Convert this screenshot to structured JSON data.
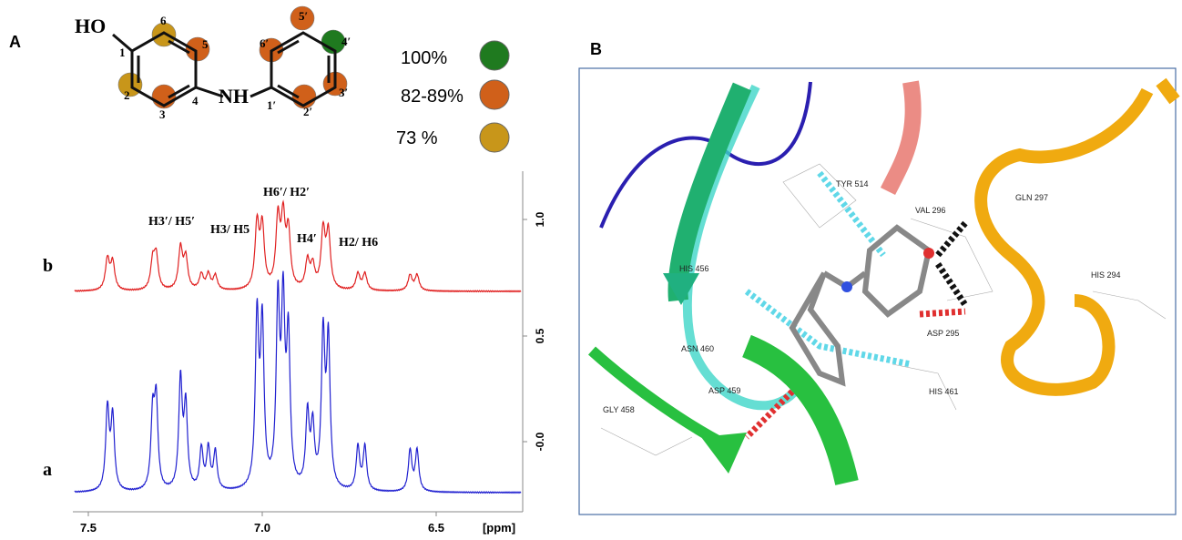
{
  "panel_a": {
    "label": "A",
    "molecule": {
      "hydroxyl": "HO",
      "amine": "NH",
      "positions": [
        "1",
        "2",
        "3",
        "4",
        "5",
        "6",
        "1′",
        "2′",
        "3′",
        "4′",
        "5′",
        "6′"
      ]
    },
    "legend": [
      "100%",
      "82-89%",
      "73  %"
    ],
    "spectra": {
      "traces": [
        "b",
        "a"
      ],
      "peaks": [
        "H3′/ H5′",
        "H3/ H5",
        "H6′/ H2′",
        "H4′",
        "H2/ H6"
      ],
      "xticks": [
        "7.5",
        "7.0",
        "6.5"
      ],
      "xlabel": "[ppm]",
      "yticks": [
        "1.0",
        "0.5",
        "-0.0"
      ]
    }
  },
  "panel_b": {
    "label": "B",
    "residues": [
      "TYR 514",
      "VAL 296",
      "GLN 297",
      "HIS 456",
      "HIS 294",
      "ASP 295",
      "ASN 460",
      "ASP 459",
      "HIS 461",
      "GLY 458"
    ]
  }
}
